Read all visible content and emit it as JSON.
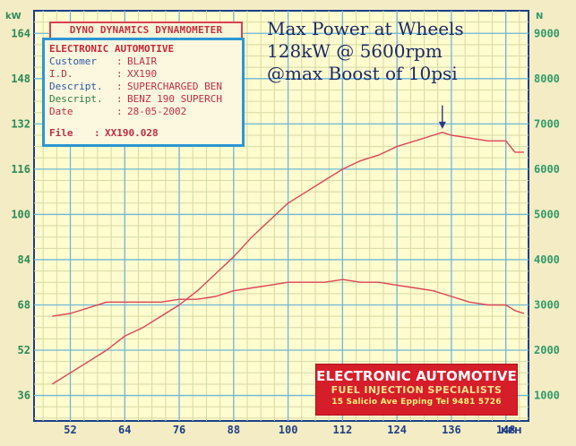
{
  "header": {
    "title": "DYNO DYNAMICS DYNAMOMETER"
  },
  "info_box": {
    "company": "ELECTRONIC AUTOMOTIVE",
    "rows": [
      {
        "key": "Customer",
        "value": "BLAIR"
      },
      {
        "key": "I.D.",
        "value": "XX190"
      },
      {
        "key": "Descript.",
        "value": "SUPERCHARGED BEN"
      },
      {
        "key": "Descript.",
        "value": "BENZ 190 SUPERCH"
      },
      {
        "key": "Date",
        "value": "28-05-2002"
      }
    ],
    "file_label": "File",
    "file_value": "XX190.028"
  },
  "summary": {
    "line1": "Max Power at Wheels",
    "line2": "128kW @ 5600rpm",
    "line3": "@max Boost of 10psi"
  },
  "logo": {
    "line1": "ELECTRONIC AUTOMOTIVE",
    "line2": "FUEL INJECTION SPECIALISTS",
    "line3": "15 Salicio Ave Epping  Tel 9481 5726"
  },
  "colors": {
    "grid_major": "#6fb8d8",
    "grid_minor": "#d6d9a5",
    "plot_bg": "#fffccf",
    "curve": "#dc4555",
    "arrow": "#2d3688",
    "axis_left": "#2a8a58",
    "axis_right": "#2f9a6a",
    "axis_bottom": "#1d3f86"
  },
  "chart_data": {
    "type": "line",
    "x_unit_label": "KPH",
    "left_unit_label": "kW",
    "right_unit_label": "N",
    "x_ticks": [
      "52",
      "64",
      "76",
      "88",
      "100",
      "112",
      "124",
      "136",
      "148"
    ],
    "left_ticks": [
      "36",
      "52",
      "68",
      "84",
      "100",
      "116",
      "132",
      "148",
      "164"
    ],
    "right_ticks": [
      "1000",
      "2000",
      "3000",
      "4000",
      "5000",
      "6000",
      "7000",
      "8000",
      "9000"
    ],
    "xlim": [
      44,
      153
    ],
    "ylim_left": [
      27,
      172
    ],
    "grid": true,
    "series": [
      {
        "x": [
          48,
          52,
          56,
          60,
          64,
          68,
          72,
          76,
          80,
          84,
          88,
          92,
          96,
          100,
          104,
          108,
          112,
          116,
          120,
          124,
          128,
          132,
          134,
          136,
          140,
          144,
          148,
          150,
          152
        ],
        "y": [
          40,
          44,
          48,
          52,
          57,
          60,
          64,
          68,
          73,
          79,
          85,
          92,
          98,
          104,
          108,
          112,
          116,
          119,
          121,
          124,
          126,
          128,
          129,
          128,
          127,
          126,
          126,
          122,
          122
        ]
      },
      {
        "x": [
          48,
          52,
          56,
          60,
          64,
          68,
          72,
          76,
          80,
          84,
          88,
          92,
          96,
          100,
          104,
          108,
          112,
          116,
          120,
          124,
          128,
          132,
          136,
          140,
          144,
          148,
          150,
          152
        ],
        "y": [
          64,
          65,
          67,
          69,
          69,
          69,
          69,
          70,
          70,
          71,
          73,
          74,
          75,
          76,
          76,
          76,
          77,
          76,
          76,
          75,
          74,
          73,
          71,
          69,
          68,
          68,
          66,
          65
        ]
      }
    ],
    "annotations": [
      {
        "type": "arrow",
        "x": 134,
        "y": 129,
        "label": ""
      }
    ]
  }
}
